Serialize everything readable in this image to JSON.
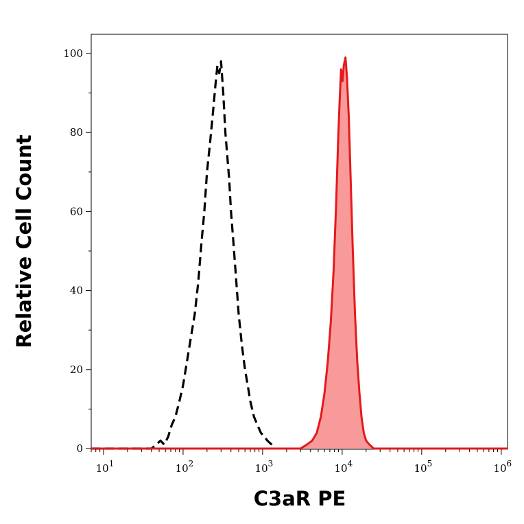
{
  "chart_data": {
    "type": "area",
    "xlabel": "C3aR PE",
    "ylabel": "Relative Cell Count",
    "xscale": "log",
    "xlim": [
      7,
      1200000
    ],
    "ylim": [
      0,
      100
    ],
    "grid": false,
    "x_ticks": [
      {
        "value": 10,
        "base": "10",
        "exp": "1"
      },
      {
        "value": 100,
        "base": "10",
        "exp": "2"
      },
      {
        "value": 1000,
        "base": "10",
        "exp": "3"
      },
      {
        "value": 10000,
        "base": "10",
        "exp": "4"
      },
      {
        "value": 100000,
        "base": "10",
        "exp": "5"
      },
      {
        "value": 1000000,
        "base": "10",
        "exp": "6"
      }
    ],
    "y_ticks": [
      {
        "value": 0,
        "label": "0"
      },
      {
        "value": 20,
        "label": "20"
      },
      {
        "value": 40,
        "label": "40"
      },
      {
        "value": 60,
        "label": "60"
      },
      {
        "value": 80,
        "label": "80"
      },
      {
        "value": 100,
        "label": "100"
      }
    ],
    "series": [
      {
        "style": "dashed",
        "color": "#000000",
        "fill": null,
        "x": [
          7,
          40,
          46,
          52,
          58,
          65,
          72,
          80,
          90,
          100,
          112,
          125,
          140,
          155,
          170,
          185,
          200,
          220,
          240,
          255,
          270,
          285,
          300,
          320,
          340,
          360,
          380,
          400,
          430,
          460,
          500,
          550,
          600,
          650,
          700,
          780,
          860,
          950,
          1050,
          1150,
          1300,
          1400
        ],
        "y": [
          0,
          0,
          1,
          2,
          1,
          3,
          6,
          8,
          12,
          16,
          22,
          28,
          34,
          42,
          52,
          60,
          70,
          78,
          86,
          92,
          97,
          95,
          98,
          90,
          80,
          74,
          68,
          60,
          52,
          44,
          34,
          26,
          20,
          16,
          12,
          8,
          6,
          4,
          3,
          2,
          1,
          0
        ]
      },
      {
        "style": "solid",
        "color": "#e41a1c",
        "fill": "#f89a9a",
        "x": [
          7,
          3000,
          3600,
          4200,
          4800,
          5400,
          6000,
          6600,
          7200,
          7800,
          8400,
          8900,
          9300,
          9700,
          10100,
          10500,
          11000,
          11500,
          12100,
          12800,
          13600,
          14500,
          15500,
          16500,
          17500,
          18700,
          20000,
          22000,
          25000,
          30000,
          1200000
        ],
        "y": [
          0,
          0,
          1,
          2,
          4,
          8,
          14,
          22,
          32,
          45,
          62,
          78,
          88,
          96,
          93,
          97,
          99,
          94,
          84,
          68,
          50,
          34,
          22,
          14,
          8,
          4,
          2,
          1,
          0,
          0,
          0
        ]
      }
    ]
  }
}
